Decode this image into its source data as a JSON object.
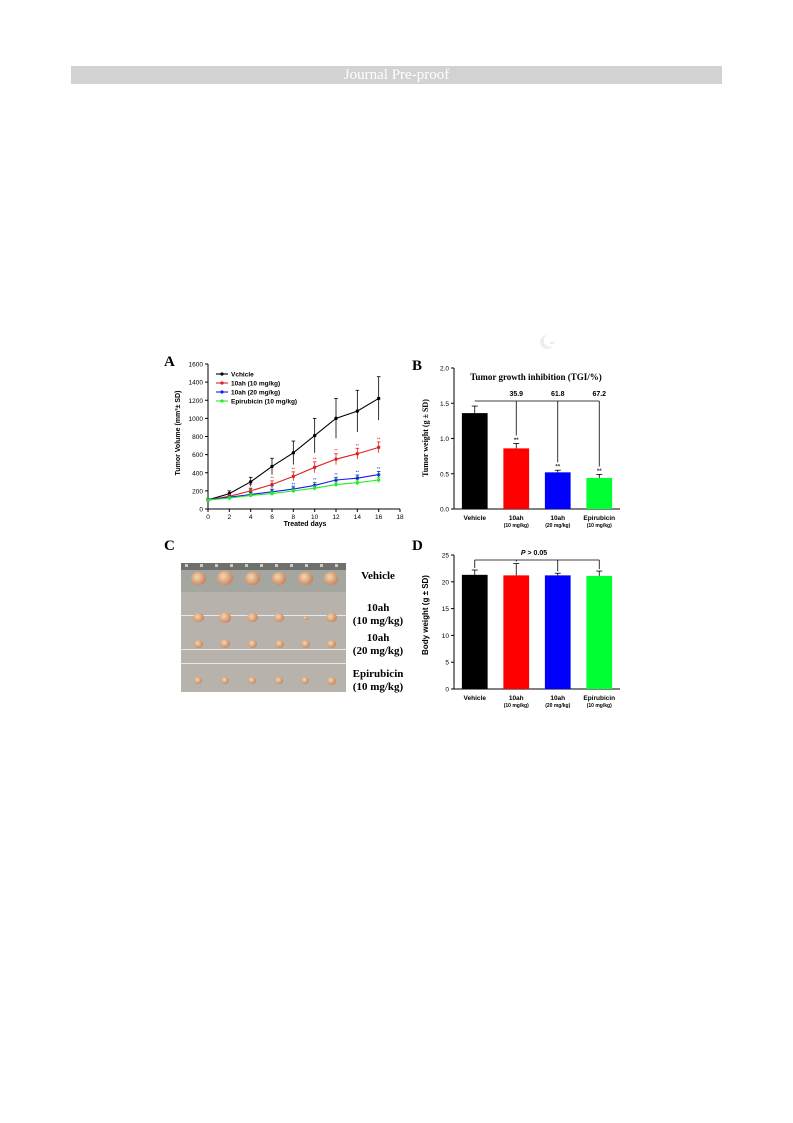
{
  "header": {
    "banner_text": "Journal Pre-proof"
  },
  "figure": {
    "panel_labels": [
      "A",
      "B",
      "C",
      "D"
    ],
    "panel_c": {
      "group_labels": [
        {
          "line1": "Vehicle",
          "line2": ""
        },
        {
          "line1": "10ah",
          "line2": "(10 mg/kg)"
        },
        {
          "line1": "10ah",
          "line2": "(20 mg/kg)"
        },
        {
          "line1": "Epirubicin",
          "line2": "(10 mg/kg)"
        }
      ]
    }
  },
  "chart_data": [
    {
      "panel": "A",
      "type": "line",
      "xlabel": "Treated days",
      "ylabel": "Tumor Volume (mm³± SD)",
      "xlim": [
        0,
        18
      ],
      "ylim": [
        0,
        1600
      ],
      "xticks": [
        0,
        2,
        4,
        6,
        8,
        10,
        12,
        14,
        16,
        18
      ],
      "yticks": [
        0,
        200,
        400,
        600,
        800,
        1000,
        1200,
        1400,
        1600
      ],
      "x": [
        0,
        2,
        4,
        6,
        8,
        10,
        12,
        14,
        16
      ],
      "legend": "top-left",
      "series": [
        {
          "name": "Vchicle",
          "color": "#000000",
          "values": [
            100,
            170,
            300,
            470,
            620,
            810,
            1000,
            1080,
            1220
          ],
          "errors": [
            15,
            30,
            50,
            90,
            130,
            190,
            220,
            230,
            240
          ]
        },
        {
          "name": "10ah (10 mg/kg)",
          "color": "#e02020",
          "values": [
            100,
            140,
            200,
            270,
            360,
            460,
            550,
            610,
            680
          ],
          "errors": [
            10,
            20,
            30,
            40,
            50,
            60,
            60,
            60,
            60
          ]
        },
        {
          "name": "10ah (20 mg/kg)",
          "color": "#1a1af0",
          "values": [
            100,
            130,
            160,
            190,
            220,
            260,
            320,
            340,
            380
          ],
          "errors": [
            10,
            15,
            20,
            25,
            25,
            30,
            30,
            35,
            35
          ]
        },
        {
          "name": "Epirubicin (10 mg/kg)",
          "color": "#22ee22",
          "values": [
            100,
            120,
            150,
            170,
            200,
            230,
            270,
            290,
            320
          ],
          "errors": [
            10,
            15,
            20,
            20,
            20,
            25,
            25,
            30,
            30
          ]
        }
      ],
      "annotations": [
        "**"
      ]
    },
    {
      "panel": "B",
      "type": "bar",
      "title": "Tumor growth inhibition (TGI/%)",
      "ylabel": "Tumor weight (g ± SD)",
      "ylim": [
        0,
        2.0
      ],
      "yticks": [
        "0.0",
        "0.5",
        "1.0",
        "1.5",
        "2.0"
      ],
      "categories": [
        {
          "name": "Vehicle",
          "sub": ""
        },
        {
          "name": "10ah",
          "sub": "(10 mg/kg)"
        },
        {
          "name": "10ah",
          "sub": "(20 mg/kg)"
        },
        {
          "name": "Epirubicin",
          "sub": "(10 mg/kg)"
        }
      ],
      "values": [
        1.36,
        0.86,
        0.52,
        0.44
      ],
      "errors": [
        0.1,
        0.07,
        0.03,
        0.05
      ],
      "colors": [
        "#000000",
        "#ff0000",
        "#0000ff",
        "#00ff33"
      ],
      "tgi_labels": [
        "",
        "35.9",
        "61.8",
        "67.2"
      ],
      "significance": [
        "",
        "**",
        "**",
        "**"
      ]
    },
    {
      "panel": "D",
      "type": "bar",
      "ylabel": "Body weight (g ± SD)",
      "ylim": [
        0,
        25
      ],
      "yticks": [
        "0",
        "5",
        "10",
        "15",
        "20",
        "25"
      ],
      "categories": [
        {
          "name": "Vehicle",
          "sub": ""
        },
        {
          "name": "10ah",
          "sub": "(10 mg/kg)"
        },
        {
          "name": "10ah",
          "sub": "(20 mg/kg)"
        },
        {
          "name": "Epirubicin",
          "sub": "(10 mg/kg)"
        }
      ],
      "values": [
        21.3,
        21.2,
        21.2,
        21.1
      ],
      "errors": [
        0.9,
        2.2,
        0.4,
        0.9
      ],
      "colors": [
        "#000000",
        "#ff0000",
        "#0000ff",
        "#00ff33"
      ],
      "annotation_p": "P",
      "annotation_rest": " > 0.05"
    }
  ]
}
